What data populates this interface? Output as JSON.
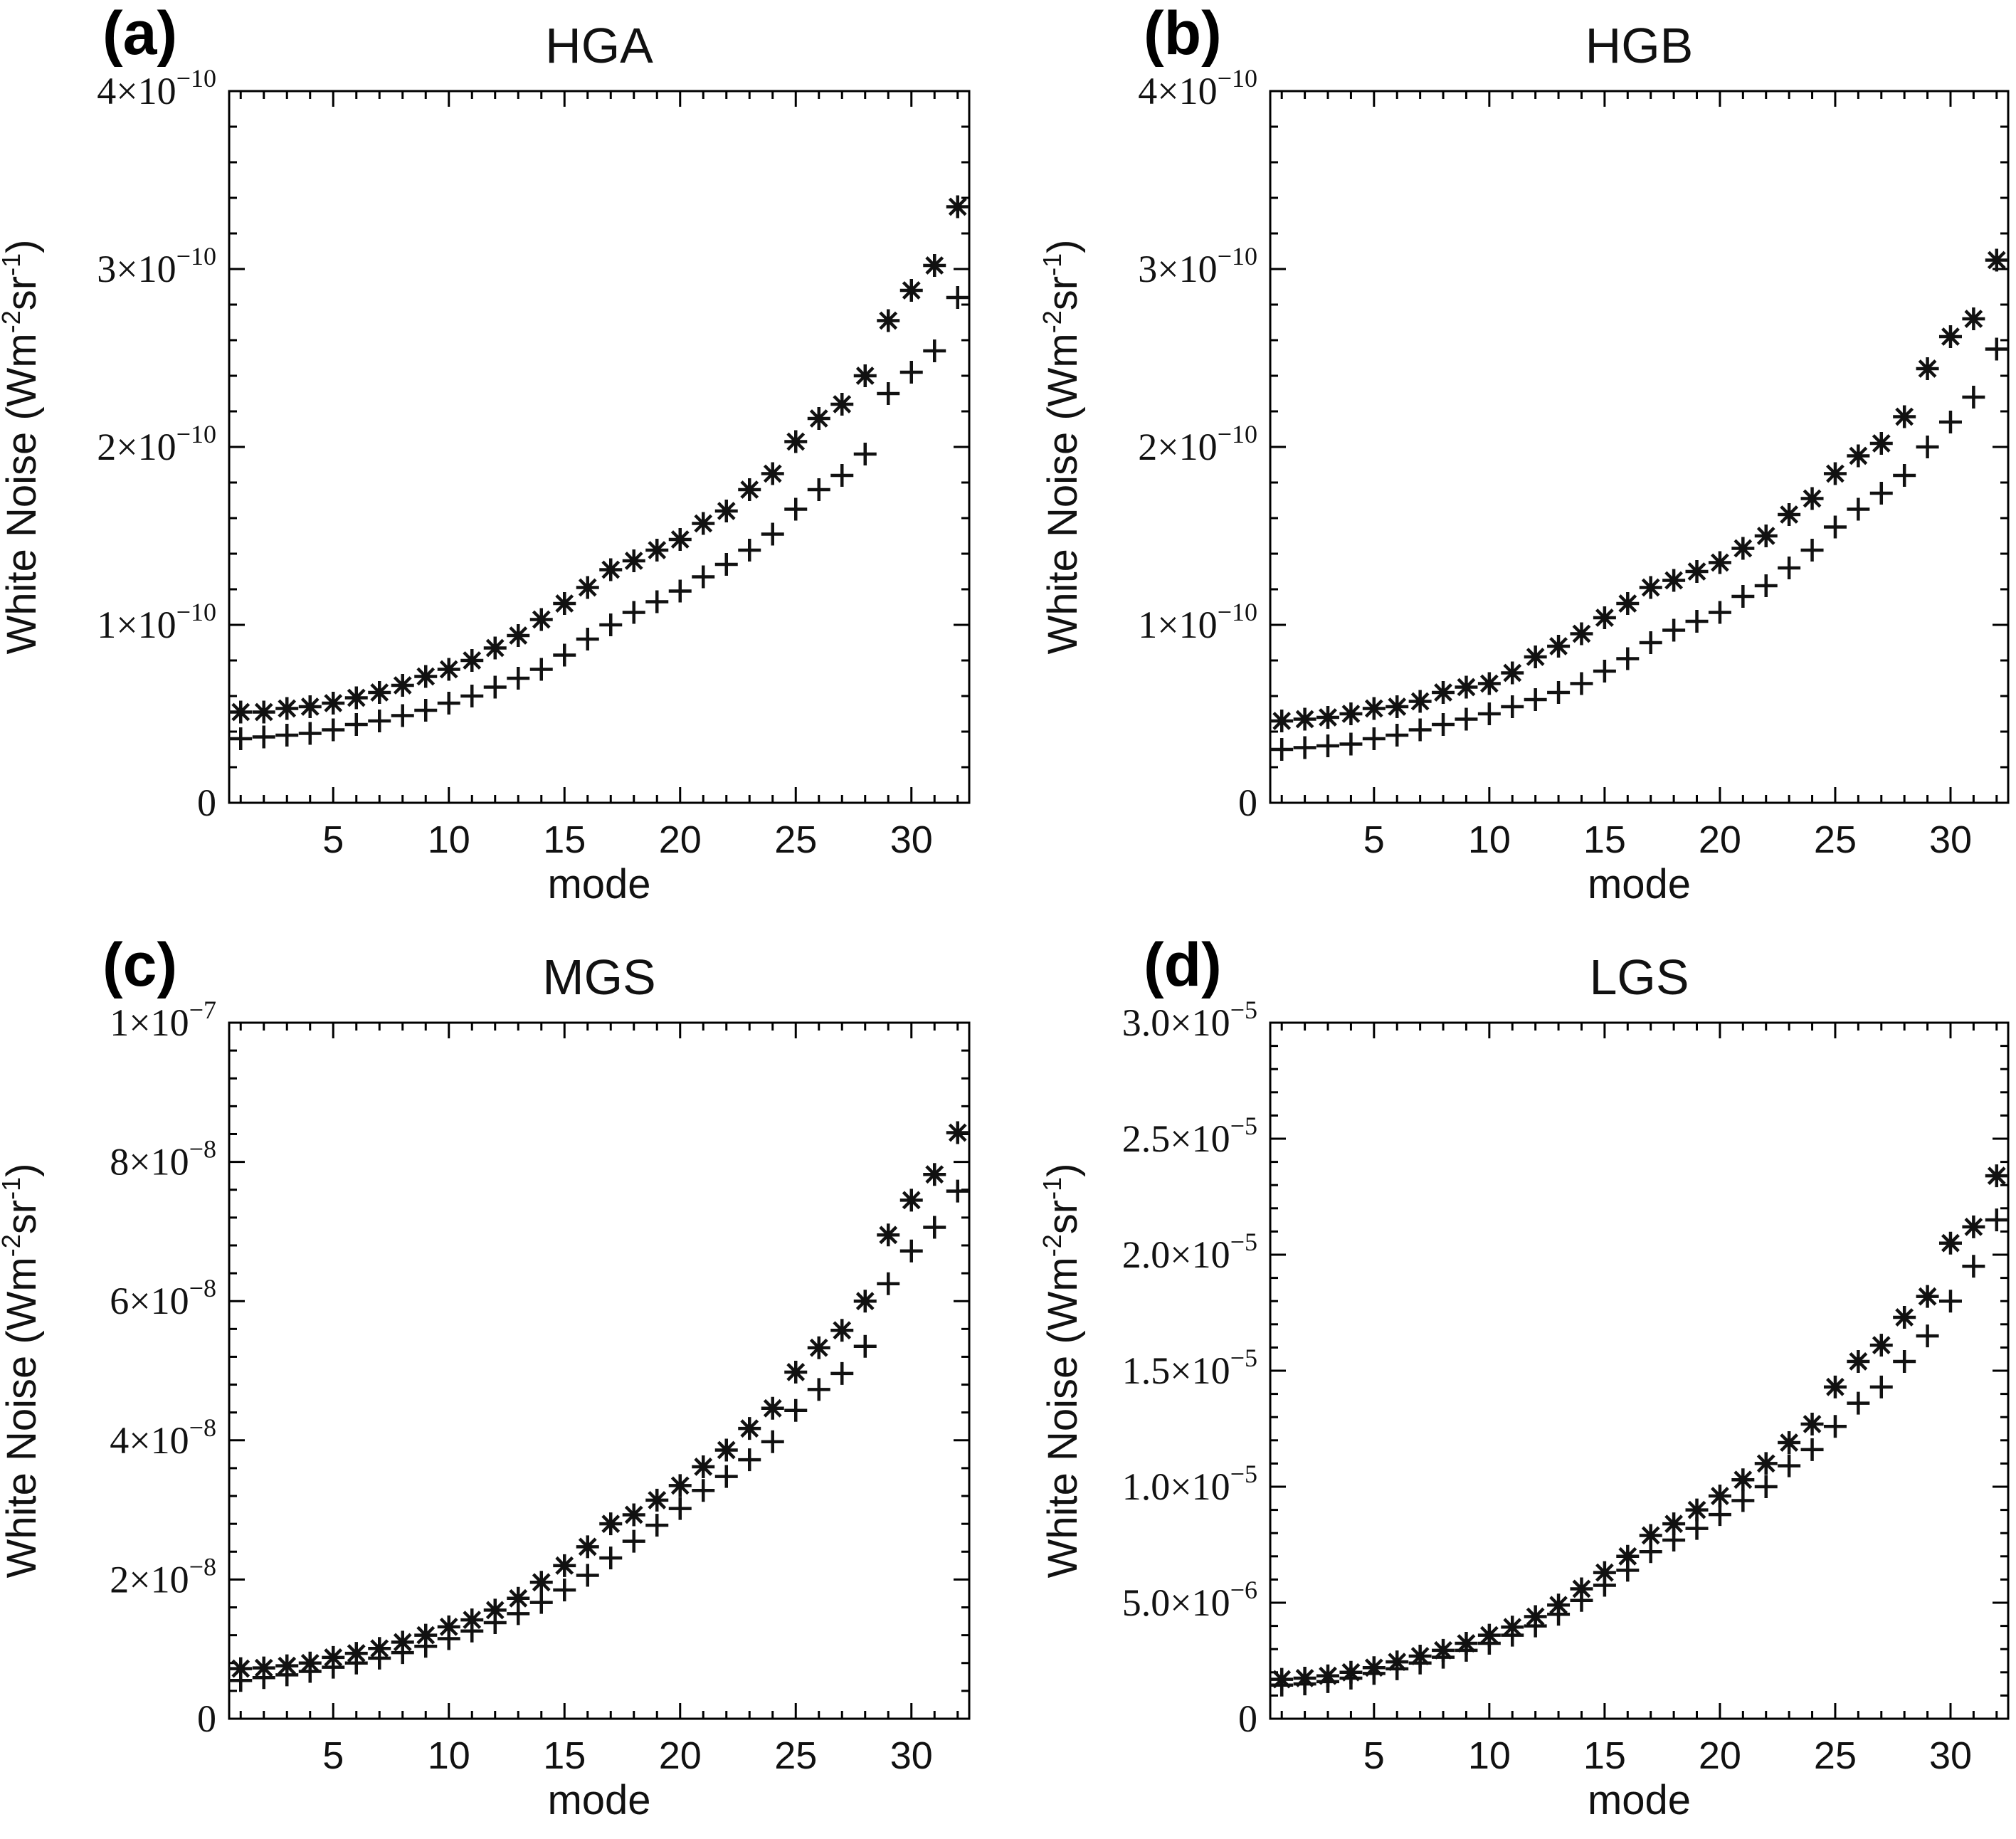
{
  "chart_data": [
    {
      "panel": "(a)",
      "title": "HGA",
      "type": "scatter",
      "xlabel": "mode",
      "ylabel_main": "White Noise (Wm",
      "ylabel_sup1": "-2",
      "ylabel_mid": "sr",
      "ylabel_sup2": "-1",
      "ylabel_end": ")",
      "xlim": [
        0.5,
        32.5
      ],
      "ylim": [
        0,
        4e-10
      ],
      "xticks": [
        5,
        10,
        15,
        20,
        25,
        30
      ],
      "xtick_labels": [
        "5",
        "10",
        "15",
        "20",
        "25",
        "30"
      ],
      "yticks": [
        0,
        1e-10,
        2e-10,
        3e-10,
        4e-10
      ],
      "ytick_labels": [
        {
          "base": "0",
          "exp": ""
        },
        {
          "base": "1×10",
          "exp": "−10"
        },
        {
          "base": "2×10",
          "exp": "−10"
        },
        {
          "base": "3×10",
          "exp": "−10"
        },
        {
          "base": "4×10",
          "exp": "−10"
        }
      ],
      "x": [
        1,
        2,
        3,
        4,
        5,
        6,
        7,
        8,
        9,
        10,
        11,
        12,
        13,
        14,
        15,
        16,
        17,
        18,
        19,
        20,
        21,
        22,
        23,
        24,
        25,
        26,
        27,
        28,
        29,
        30,
        31,
        32
      ],
      "series": [
        {
          "name": "asterisk",
          "marker": "asterisk",
          "values": [
            5.1e-11,
            5.1e-11,
            5.3e-11,
            5.4e-11,
            5.6e-11,
            5.9e-11,
            6.2e-11,
            6.6e-11,
            7.1e-11,
            7.5e-11,
            8e-11,
            8.7e-11,
            9.4e-11,
            1.03e-10,
            1.12e-10,
            1.21e-10,
            1.31e-10,
            1.36e-10,
            1.42e-10,
            1.48e-10,
            1.57e-10,
            1.64e-10,
            1.76e-10,
            1.85e-10,
            2.03e-10,
            2.16e-10,
            2.24e-10,
            2.4e-10,
            2.71e-10,
            2.88e-10,
            3.02e-10,
            3.35e-10
          ]
        },
        {
          "name": "plus",
          "marker": "plus",
          "values": [
            3.6e-11,
            3.7e-11,
            3.8e-11,
            3.9e-11,
            4.1e-11,
            4.4e-11,
            4.6e-11,
            4.9e-11,
            5.2e-11,
            5.6e-11,
            6e-11,
            6.5e-11,
            7e-11,
            7.5e-11,
            8.3e-11,
            9.2e-11,
            1e-10,
            1.07e-10,
            1.13e-10,
            1.19e-10,
            1.27e-10,
            1.34e-10,
            1.42e-10,
            1.51e-10,
            1.65e-10,
            1.76e-10,
            1.84e-10,
            1.96e-10,
            2.3e-10,
            2.42e-10,
            2.54e-10,
            2.84e-10
          ]
        }
      ]
    },
    {
      "panel": "(b)",
      "title": "HGB",
      "type": "scatter",
      "xlabel": "mode",
      "ylabel_main": "White Noise (Wm",
      "ylabel_sup1": "-2",
      "ylabel_mid": "sr",
      "ylabel_sup2": "-1",
      "ylabel_end": ")",
      "xlim": [
        0.5,
        32.5
      ],
      "ylim": [
        0,
        4e-10
      ],
      "xticks": [
        5,
        10,
        15,
        20,
        25,
        30
      ],
      "xtick_labels": [
        "5",
        "10",
        "15",
        "20",
        "25",
        "30"
      ],
      "yticks": [
        0,
        1e-10,
        2e-10,
        3e-10,
        4e-10
      ],
      "ytick_labels": [
        {
          "base": "0",
          "exp": ""
        },
        {
          "base": "1×10",
          "exp": "−10"
        },
        {
          "base": "2×10",
          "exp": "−10"
        },
        {
          "base": "3×10",
          "exp": "−10"
        },
        {
          "base": "4×10",
          "exp": "−10"
        }
      ],
      "x": [
        1,
        2,
        3,
        4,
        5,
        6,
        7,
        8,
        9,
        10,
        11,
        12,
        13,
        14,
        15,
        16,
        17,
        18,
        19,
        20,
        21,
        22,
        23,
        24,
        25,
        26,
        27,
        28,
        29,
        30,
        31,
        32
      ],
      "series": [
        {
          "name": "asterisk",
          "marker": "asterisk",
          "values": [
            4.6e-11,
            4.7e-11,
            4.8e-11,
            5e-11,
            5.3e-11,
            5.4e-11,
            5.7e-11,
            6.2e-11,
            6.5e-11,
            6.7e-11,
            7.3e-11,
            8.2e-11,
            8.8e-11,
            9.5e-11,
            1.04e-10,
            1.12e-10,
            1.21e-10,
            1.25e-10,
            1.3e-10,
            1.35e-10,
            1.43e-10,
            1.5e-10,
            1.62e-10,
            1.71e-10,
            1.85e-10,
            1.95e-10,
            2.02e-10,
            2.17e-10,
            2.44e-10,
            2.62e-10,
            2.72e-10,
            3.05e-10
          ]
        },
        {
          "name": "plus",
          "marker": "plus",
          "values": [
            3e-11,
            3.1e-11,
            3.2e-11,
            3.3e-11,
            3.6e-11,
            3.8e-11,
            4.1e-11,
            4.4e-11,
            4.7e-11,
            5e-11,
            5.4e-11,
            5.8e-11,
            6.2e-11,
            6.7e-11,
            7.4e-11,
            8.1e-11,
            9e-11,
            9.7e-11,
            1.02e-10,
            1.07e-10,
            1.16e-10,
            1.22e-10,
            1.32e-10,
            1.42e-10,
            1.55e-10,
            1.65e-10,
            1.74e-10,
            1.84e-10,
            2e-10,
            2.14e-10,
            2.28e-10,
            2.55e-10
          ]
        }
      ]
    },
    {
      "panel": "(c)",
      "title": "MGS",
      "type": "scatter",
      "xlabel": "mode",
      "ylabel_main": "White Noise (Wm",
      "ylabel_sup1": "-2",
      "ylabel_mid": "sr",
      "ylabel_sup2": "-1",
      "ylabel_end": ")",
      "xlim": [
        0.5,
        32.5
      ],
      "ylim": [
        0,
        1e-07
      ],
      "xticks": [
        5,
        10,
        15,
        20,
        25,
        30
      ],
      "xtick_labels": [
        "5",
        "10",
        "15",
        "20",
        "25",
        "30"
      ],
      "yticks": [
        0,
        2e-08,
        4e-08,
        6e-08,
        8e-08,
        1e-07
      ],
      "ytick_labels": [
        {
          "base": "0",
          "exp": ""
        },
        {
          "base": "2×10",
          "exp": "−8"
        },
        {
          "base": "4×10",
          "exp": "−8"
        },
        {
          "base": "6×10",
          "exp": "−8"
        },
        {
          "base": "8×10",
          "exp": "−8"
        },
        {
          "base": "1×10",
          "exp": "−7"
        }
      ],
      "x": [
        1,
        2,
        3,
        4,
        5,
        6,
        7,
        8,
        9,
        10,
        11,
        12,
        13,
        14,
        15,
        16,
        17,
        18,
        19,
        20,
        21,
        22,
        23,
        24,
        25,
        26,
        27,
        28,
        29,
        30,
        31,
        32
      ],
      "series": [
        {
          "name": "asterisk",
          "marker": "asterisk",
          "values": [
            7.2e-09,
            7.3e-09,
            7.6e-09,
            8e-09,
            8.8e-09,
            9.4e-09,
            1.01e-08,
            1.1e-08,
            1.2e-08,
            1.32e-08,
            1.42e-08,
            1.56e-08,
            1.73e-08,
            1.96e-08,
            2.2e-08,
            2.47e-08,
            2.8e-08,
            2.93e-08,
            3.14e-08,
            3.35e-08,
            3.62e-08,
            3.86e-08,
            4.17e-08,
            4.46e-08,
            4.98e-08,
            5.33e-08,
            5.58e-08,
            6e-08,
            6.95e-08,
            7.45e-08,
            7.82e-08,
            8.42e-08
          ]
        },
        {
          "name": "plus",
          "marker": "plus",
          "values": [
            5.5e-09,
            5.9e-09,
            6.3e-09,
            6.8e-09,
            7.4e-09,
            8e-09,
            8.7e-09,
            9.5e-09,
            1.04e-08,
            1.15e-08,
            1.26e-08,
            1.38e-08,
            1.51e-08,
            1.67e-08,
            1.85e-08,
            2.06e-08,
            2.31e-08,
            2.55e-08,
            2.78e-08,
            3.02e-08,
            3.28e-08,
            3.48e-08,
            3.72e-08,
            3.98e-08,
            4.43e-08,
            4.73e-08,
            4.96e-08,
            5.35e-08,
            6.25e-08,
            6.72e-08,
            7.06e-08,
            7.58e-08
          ]
        }
      ]
    },
    {
      "panel": "(d)",
      "title": "LGS",
      "type": "scatter",
      "xlabel": "mode",
      "ylabel_main": "White Noise (Wm",
      "ylabel_sup1": "-2",
      "ylabel_mid": "sr",
      "ylabel_sup2": "-1",
      "ylabel_end": ")",
      "xlim": [
        0.5,
        32.5
      ],
      "ylim": [
        0,
        3e-05
      ],
      "xticks": [
        5,
        10,
        15,
        20,
        25,
        30
      ],
      "xtick_labels": [
        "5",
        "10",
        "15",
        "20",
        "25",
        "30"
      ],
      "yticks": [
        0,
        5e-06,
        1e-05,
        1.5e-05,
        2e-05,
        2.5e-05,
        3e-05
      ],
      "ytick_labels": [
        {
          "base": "0",
          "exp": ""
        },
        {
          "base": "5.0×10",
          "exp": "−6"
        },
        {
          "base": "1.0×10",
          "exp": "−5"
        },
        {
          "base": "1.5×10",
          "exp": "−5"
        },
        {
          "base": "2.0×10",
          "exp": "−5"
        },
        {
          "base": "2.5×10",
          "exp": "−5"
        },
        {
          "base": "3.0×10",
          "exp": "−5"
        }
      ],
      "x": [
        1,
        2,
        3,
        4,
        5,
        6,
        7,
        8,
        9,
        10,
        11,
        12,
        13,
        14,
        15,
        16,
        17,
        18,
        19,
        20,
        21,
        22,
        23,
        24,
        25,
        26,
        27,
        28,
        29,
        30,
        31,
        32
      ],
      "series": [
        {
          "name": "asterisk",
          "marker": "asterisk",
          "values": [
            1.7e-06,
            1.75e-06,
            1.85e-06,
            2e-06,
            2.2e-06,
            2.45e-06,
            2.7e-06,
            2.95e-06,
            3.25e-06,
            3.6e-06,
            3.95e-06,
            4.4e-06,
            4.9e-06,
            5.6e-06,
            6.3e-06,
            7e-06,
            7.9e-06,
            8.4e-06,
            9e-06,
            9.6e-06,
            1.03e-05,
            1.1e-05,
            1.19e-05,
            1.27e-05,
            1.43e-05,
            1.54e-05,
            1.61e-05,
            1.73e-05,
            1.82e-05,
            2.05e-05,
            2.12e-05,
            2.34e-05
          ]
        },
        {
          "name": "plus",
          "marker": "plus",
          "values": [
            1.45e-06,
            1.5e-06,
            1.6e-06,
            1.75e-06,
            1.95e-06,
            2.15e-06,
            2.4e-06,
            2.65e-06,
            2.95e-06,
            3.25e-06,
            3.6e-06,
            4e-06,
            4.5e-06,
            5.1e-06,
            5.75e-06,
            6.4e-06,
            7.2e-06,
            7.7e-06,
            8.2e-06,
            8.8e-06,
            9.4e-06,
            1e-05,
            1.09e-05,
            1.16e-05,
            1.26e-05,
            1.36e-05,
            1.43e-05,
            1.54e-05,
            1.65e-05,
            1.8e-05,
            1.95e-05,
            2.15e-05
          ]
        }
      ]
    }
  ]
}
